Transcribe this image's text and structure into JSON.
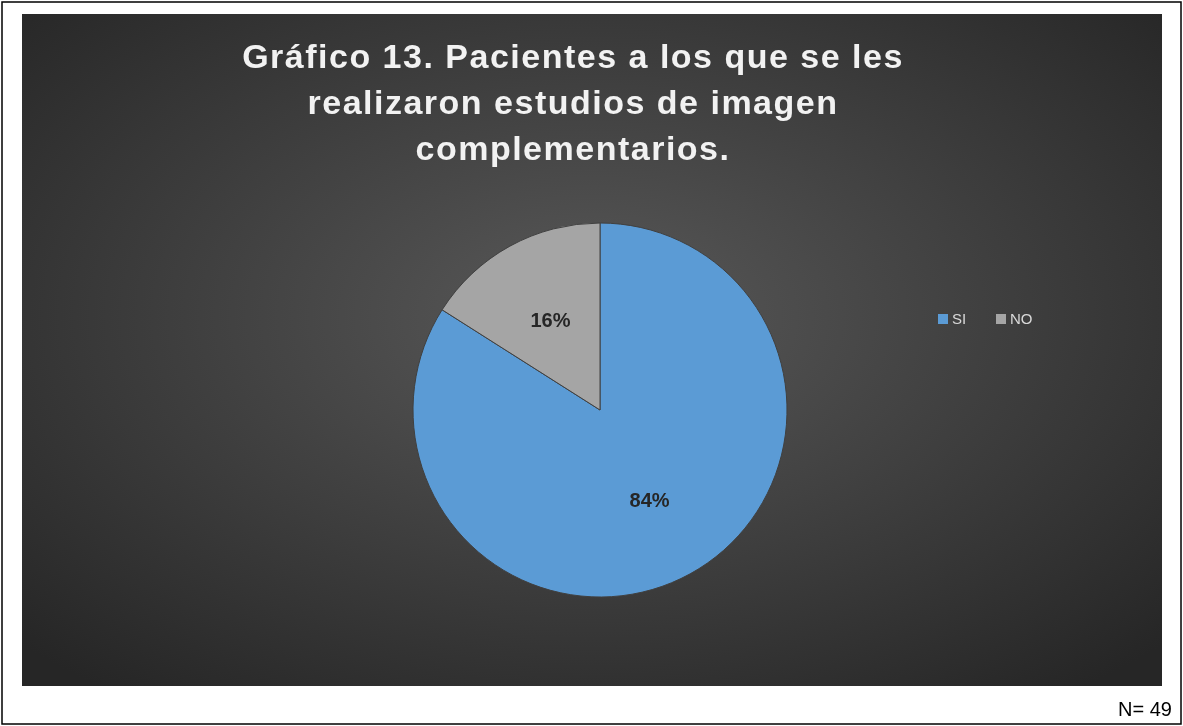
{
  "chart_data": {
    "type": "pie",
    "title": "Gráfico 13. Pacientes a los que se les realizaron estudios de imagen complementarios.",
    "categories": [
      "SI",
      "NO"
    ],
    "values": [
      84,
      16
    ],
    "colors": [
      "#5b9bd5",
      "#a5a5a5"
    ],
    "value_labels": [
      "84%",
      "16%"
    ],
    "legend": "right",
    "annotations": [
      "N= 49"
    ]
  }
}
